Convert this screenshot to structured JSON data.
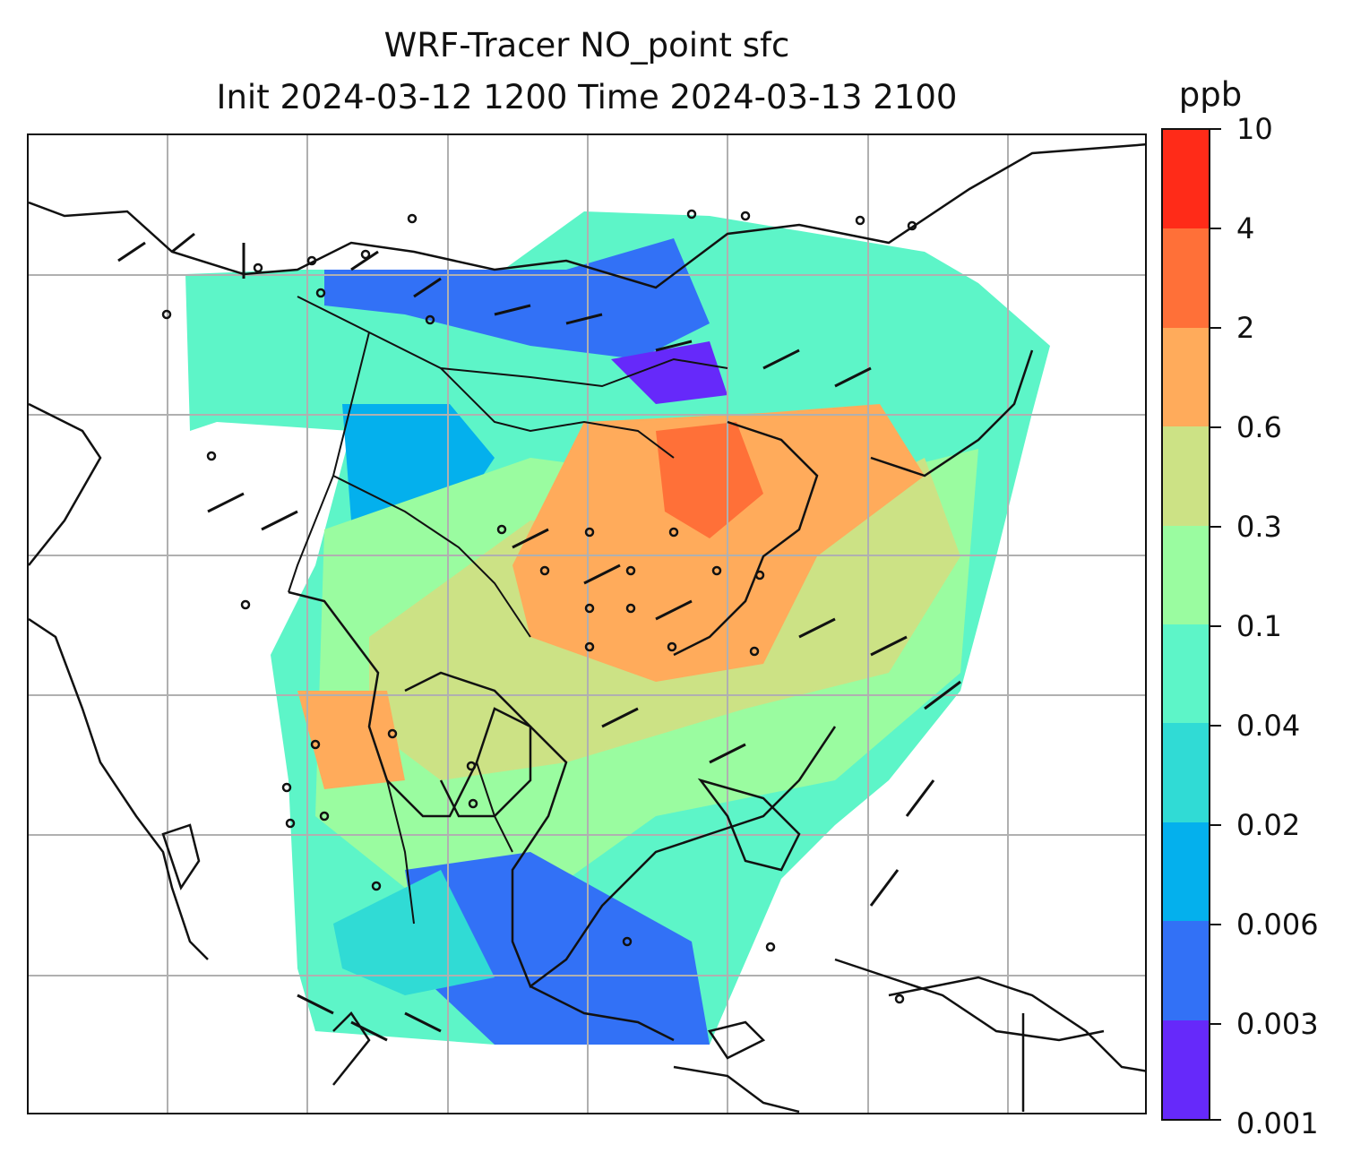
{
  "title_line1": "WRF-Tracer NO_point sfc",
  "title_line2": "Init 2024-03-12 1200 Time 2024-03-13 2100",
  "colorbar": {
    "unit": "ppb",
    "levels": [
      "10",
      "4",
      "2",
      "0.6",
      "0.3",
      "0.1",
      "0.04",
      "0.02",
      "0.006",
      "0.003",
      "0.001"
    ],
    "colors_top_to_bottom": [
      "#ff2b18",
      "#ff7038",
      "#ffab5b",
      "#cce285",
      "#9afca0",
      "#5df5c8",
      "#30dbd5",
      "#04b0ed",
      "#3271f6",
      "#6629fa"
    ]
  },
  "map": {
    "gridlines": true,
    "features": [
      "coastlines",
      "country-borders",
      "wind-barbs",
      "tracer-concentration-field"
    ]
  }
}
